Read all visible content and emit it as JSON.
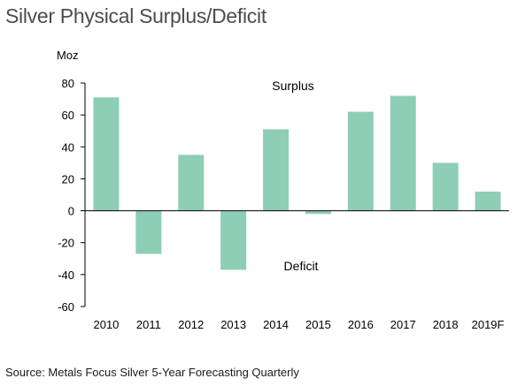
{
  "chart_data": {
    "type": "bar",
    "title": "Silver Physical Surplus/Deficit",
    "ylabel": "Moz",
    "xlabel": "",
    "categories": [
      "2010",
      "2011",
      "2012",
      "2013",
      "2014",
      "2015",
      "2016",
      "2017",
      "2018",
      "2019F"
    ],
    "values": [
      71,
      -27,
      35,
      -37,
      51,
      -2,
      62,
      72,
      30,
      12
    ],
    "ylim": [
      -60,
      80
    ],
    "yticks": [
      80,
      60,
      40,
      20,
      0,
      -20,
      -40,
      -60
    ],
    "grid": false,
    "annotations": {
      "surplus": "Surplus",
      "deficit": "Deficit"
    },
    "bar_color": "#8ecdb6",
    "axis_color": "#000000"
  },
  "source": "Source: Metals Focus Silver 5-Year Forecasting Quarterly"
}
